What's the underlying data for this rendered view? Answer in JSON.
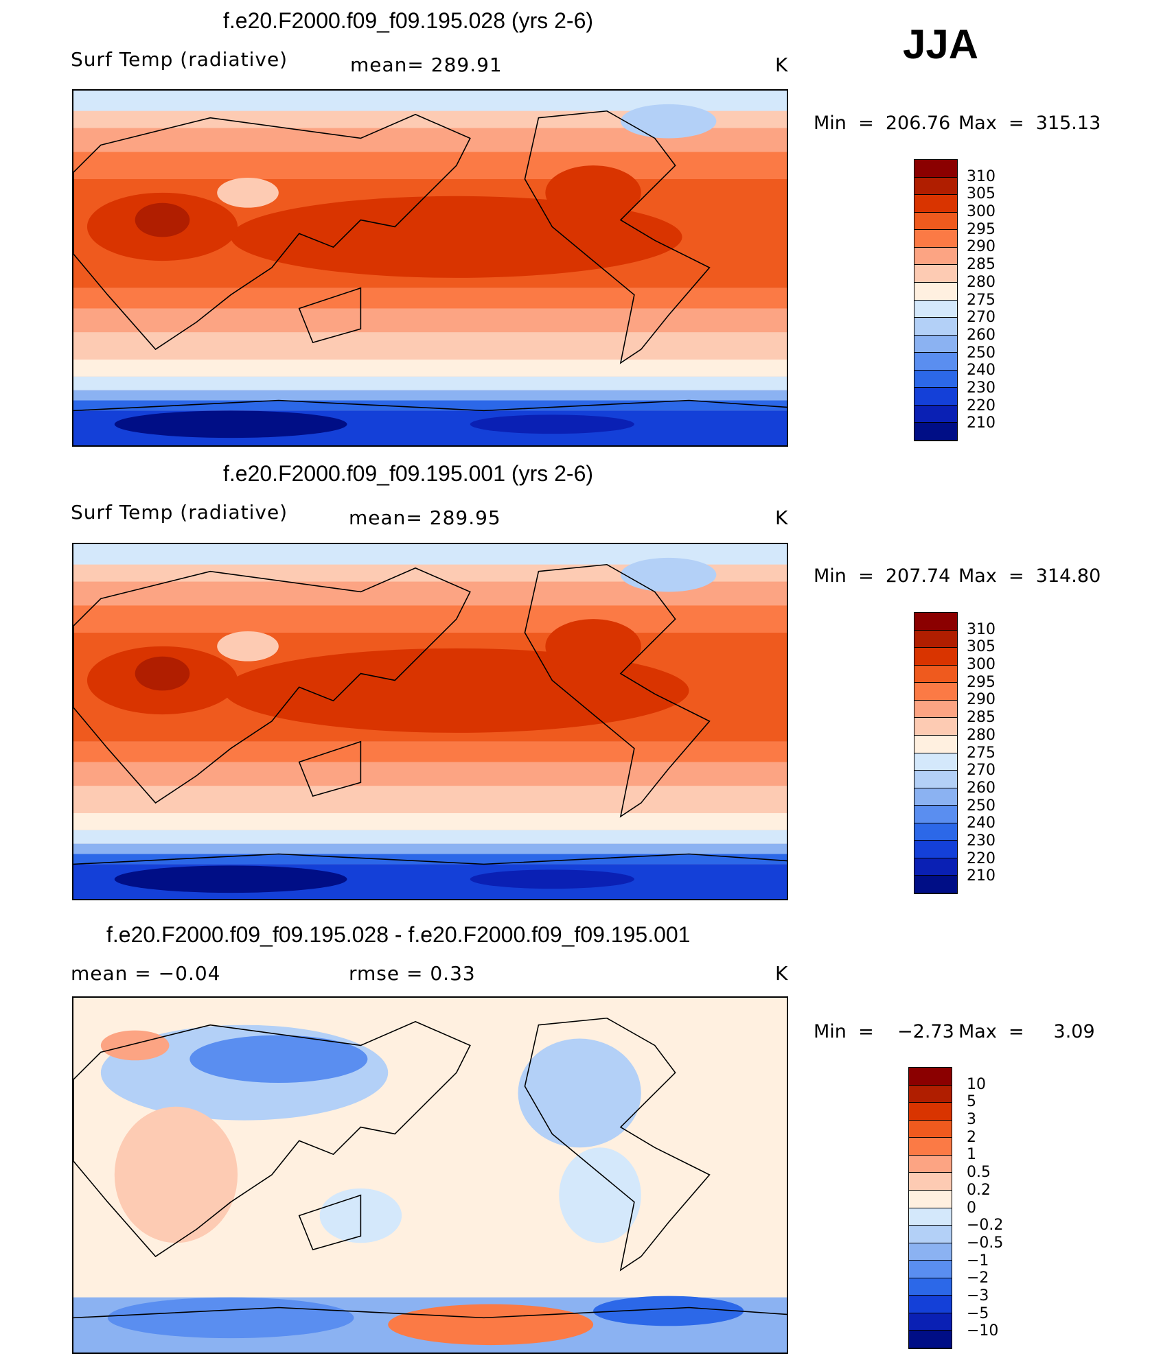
{
  "season": "JJA",
  "units_label": "K",
  "chart_data": [
    {
      "type": "heatmap",
      "title": "f.e20.F2000.f09_f09.195.028 (yrs 2-6)",
      "variable": "Surf Temp (radiative)",
      "mean_text": "mean= 289.91",
      "units": "K",
      "min_text": "Min  =  206.76",
      "max_text": "Max  =  315.13",
      "min": 206.76,
      "max": 315.13,
      "mean": 289.91,
      "colorbar_levels": [
        "310",
        "305",
        "300",
        "295",
        "290",
        "285",
        "280",
        "275",
        "270",
        "260",
        "250",
        "240",
        "230",
        "220",
        "210"
      ],
      "colorbar_colors": [
        "#8b0000",
        "#b01e00",
        "#d93400",
        "#ef5a1e",
        "#fb7a45",
        "#fca483",
        "#fdcbb3",
        "#fff0e0",
        "#d4e8fb",
        "#b3d0f7",
        "#8bb2f2",
        "#5a8ef0",
        "#2c68e8",
        "#1440d8",
        "#0a20b4",
        "#000e86"
      ]
    },
    {
      "type": "heatmap",
      "title": "f.e20.F2000.f09_f09.195.001 (yrs 2-6)",
      "variable": "Surf Temp (radiative)",
      "mean_text": "mean= 289.95",
      "units": "K",
      "min_text": "Min  =  207.74",
      "max_text": "Max  =  314.80",
      "min": 207.74,
      "max": 314.8,
      "mean": 289.95,
      "colorbar_levels": [
        "310",
        "305",
        "300",
        "295",
        "290",
        "285",
        "280",
        "275",
        "270",
        "260",
        "250",
        "240",
        "230",
        "220",
        "210"
      ],
      "colorbar_colors": [
        "#8b0000",
        "#b01e00",
        "#d93400",
        "#ef5a1e",
        "#fb7a45",
        "#fca483",
        "#fdcbb3",
        "#fff0e0",
        "#d4e8fb",
        "#b3d0f7",
        "#8bb2f2",
        "#5a8ef0",
        "#2c68e8",
        "#1440d8",
        "#0a20b4",
        "#000e86"
      ]
    },
    {
      "type": "heatmap",
      "title": "f.e20.F2000.f09_f09.195.028 - f.e20.F2000.f09_f09.195.001",
      "mean_text": "mean =    −0.04",
      "rmse_text": "rmse =     0.33",
      "units": "K",
      "min_text": "Min  =    −2.73",
      "max_text": "Max  =     3.09",
      "min": -2.73,
      "max": 3.09,
      "mean": -0.04,
      "rmse": 0.33,
      "colorbar_levels": [
        "10",
        "5",
        "3",
        "2",
        "1",
        "0.5",
        "0.2",
        "0",
        "−0.2",
        "−0.5",
        "−1",
        "−2",
        "−3",
        "−5",
        "−10"
      ],
      "colorbar_colors": [
        "#8b0000",
        "#b01e00",
        "#d93400",
        "#ef5a1e",
        "#fb7a45",
        "#fca483",
        "#fdcbb3",
        "#fff0e0",
        "#d4e8fb",
        "#b3d0f7",
        "#8bb2f2",
        "#5a8ef0",
        "#2c68e8",
        "#1440d8",
        "#0a20b4",
        "#000e86"
      ]
    }
  ]
}
